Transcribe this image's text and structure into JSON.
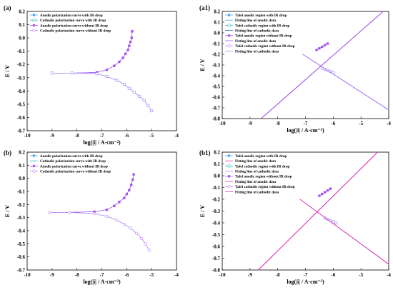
{
  "figure": {
    "panels": [
      {
        "label": "(a)"
      },
      {
        "label": "(a1)"
      },
      {
        "label": "(b)"
      },
      {
        "label": "(b1)"
      }
    ]
  },
  "colors": {
    "blue": "#4da6e8",
    "darkblue": "#1f5fd0",
    "cyan": "#3cc0c0",
    "purple": "#b050f0",
    "violet": "#c080ff",
    "pink": "#e03cb8",
    "lavender": "#b69bf0"
  },
  "chart_data": [
    {
      "type": "line",
      "panel": "(a)",
      "xlabel": "log(|i| / A·cm⁻²)",
      "ylabel": "E / V",
      "xlim": [
        -10,
        -4
      ],
      "ylim": [
        -0.7,
        0.2
      ],
      "xticks": [
        -10,
        -9,
        -8,
        -7,
        -6,
        -5,
        -4
      ],
      "yticks": [
        0.2,
        0.1,
        0.0,
        -0.1,
        -0.2,
        -0.3,
        -0.4,
        -0.5,
        -0.6,
        -0.7
      ],
      "legend_position": "top-left",
      "series": [
        {
          "name": "Anodic polarization curve with IR drop",
          "color": "blue",
          "marker": "filled-square",
          "x": [
            -9.0,
            -8.2,
            -7.2,
            -6.8,
            -6.5,
            -6.3,
            -6.15,
            -6.05,
            -5.95,
            -5.9,
            -5.85,
            -5.8,
            -5.78
          ],
          "y": [
            -0.265,
            -0.265,
            -0.26,
            -0.24,
            -0.21,
            -0.18,
            -0.15,
            -0.12,
            -0.09,
            -0.06,
            -0.03,
            0.0,
            0.05
          ]
        },
        {
          "name": "Cathodic polarization curve with IR drop",
          "color": "cyan",
          "marker": "open-square",
          "x": [
            -9.0,
            -8.2,
            -7.2,
            -6.8,
            -6.4,
            -6.1,
            -5.9,
            -5.7,
            -5.5,
            -5.3,
            -5.15,
            -5.0
          ],
          "y": [
            -0.265,
            -0.265,
            -0.27,
            -0.29,
            -0.32,
            -0.35,
            -0.38,
            -0.41,
            -0.44,
            -0.47,
            -0.51,
            -0.55
          ]
        },
        {
          "name": "Anodic polarization curve without IR drop",
          "color": "purple",
          "marker": "filled-circle",
          "x": [
            -9.0,
            -8.2,
            -7.2,
            -6.8,
            -6.5,
            -6.3,
            -6.15,
            -6.05,
            -5.95,
            -5.9,
            -5.85,
            -5.8,
            -5.78
          ],
          "y": [
            -0.265,
            -0.265,
            -0.26,
            -0.24,
            -0.21,
            -0.18,
            -0.15,
            -0.12,
            -0.09,
            -0.06,
            -0.03,
            0.0,
            0.05
          ]
        },
        {
          "name": "Cathodic polarization curve without IR drop",
          "color": "violet",
          "marker": "open-circle",
          "x": [
            -9.0,
            -8.2,
            -7.2,
            -6.8,
            -6.4,
            -6.1,
            -5.9,
            -5.7,
            -5.5,
            -5.3,
            -5.15,
            -5.0
          ],
          "y": [
            -0.265,
            -0.265,
            -0.27,
            -0.29,
            -0.32,
            -0.35,
            -0.38,
            -0.41,
            -0.44,
            -0.47,
            -0.51,
            -0.55
          ]
        }
      ]
    },
    {
      "type": "line",
      "panel": "(a1)",
      "xlabel": "log(|i| / A·cm⁻²)",
      "ylabel": "E / V",
      "xlim": [
        -10,
        -4
      ],
      "ylim": [
        -0.8,
        0.2
      ],
      "xticks": [
        -10,
        -9,
        -8,
        -7,
        -6,
        -5,
        -4
      ],
      "yticks": [
        0.2,
        0.1,
        0.0,
        -0.1,
        -0.2,
        -0.3,
        -0.4,
        -0.5,
        -0.6,
        -0.7,
        -0.8
      ],
      "legend_position": "top-left",
      "series": [
        {
          "name": "Tafel anodic region with IR drop",
          "color": "blue",
          "marker": "filled-square",
          "x": [
            -6.6,
            -6.5,
            -6.4,
            -6.3,
            -6.2
          ],
          "y": [
            -0.16,
            -0.145,
            -0.13,
            -0.115,
            -0.1
          ]
        },
        {
          "name": "Fitting line of anodic data",
          "color": "blue",
          "marker": "line",
          "x": [
            -8.6,
            -4.2
          ],
          "y": [
            -0.8,
            0.2
          ]
        },
        {
          "name": "Tafel cathodic region with IR drop",
          "color": "cyan",
          "marker": "open-square",
          "x": [
            -6.4,
            -6.3,
            -6.2,
            -6.1,
            -6.0
          ],
          "y": [
            -0.33,
            -0.34,
            -0.35,
            -0.36,
            -0.37
          ]
        },
        {
          "name": "Fitting line of cathodic data",
          "color": "darkblue",
          "marker": "line",
          "x": [
            -7.1,
            -4.0
          ],
          "y": [
            -0.2,
            -0.72
          ]
        },
        {
          "name": "Tafel anodic region without IR drop",
          "color": "purple",
          "marker": "filled-circle",
          "x": [
            -6.6,
            -6.5,
            -6.4,
            -6.3,
            -6.2
          ],
          "y": [
            -0.16,
            -0.145,
            -0.13,
            -0.115,
            -0.1
          ]
        },
        {
          "name": "Fitting line of anodic data",
          "color": "purple",
          "marker": "line",
          "x": [
            -8.6,
            -4.2
          ],
          "y": [
            -0.8,
            0.2
          ]
        },
        {
          "name": "Tafel cathodic region without IR drop",
          "color": "violet",
          "marker": "open-circle",
          "x": [
            -6.4,
            -6.3,
            -6.2,
            -6.1,
            -6.0
          ],
          "y": [
            -0.33,
            -0.34,
            -0.35,
            -0.36,
            -0.37
          ]
        },
        {
          "name": "Fitting line of cathodic data",
          "color": "violet",
          "marker": "line",
          "x": [
            -7.1,
            -4.0
          ],
          "y": [
            -0.2,
            -0.72
          ]
        }
      ]
    },
    {
      "type": "line",
      "panel": "(b)",
      "xlabel": "log(|i| / A·cm⁻²)",
      "ylabel": "E / V",
      "xlim": [
        -10,
        -4
      ],
      "ylim": [
        -0.7,
        0.2
      ],
      "xticks": [
        -10,
        -9,
        -8,
        -7,
        -6,
        -5,
        -4
      ],
      "yticks": [
        0.2,
        0.1,
        0.0,
        -0.1,
        -0.2,
        -0.3,
        -0.4,
        -0.5,
        -0.6,
        -0.7
      ],
      "legend_position": "top-left",
      "series": [
        {
          "name": "Anodic polarization curve with IR drop",
          "color": "blue",
          "marker": "filled-square",
          "x": [
            -9.1,
            -8.3,
            -7.3,
            -6.8,
            -6.5,
            -6.3,
            -6.1,
            -6.0,
            -5.9,
            -5.82,
            -5.76,
            -5.72
          ],
          "y": [
            -0.26,
            -0.26,
            -0.255,
            -0.24,
            -0.21,
            -0.18,
            -0.15,
            -0.12,
            -0.09,
            -0.05,
            -0.01,
            0.03
          ]
        },
        {
          "name": "Cathodic polarization curve with IR drop",
          "color": "cyan",
          "marker": "dash",
          "x": [
            -9.1,
            -8.3,
            -7.3,
            -6.8,
            -6.4,
            -6.1,
            -5.85,
            -5.6,
            -5.4,
            -5.25,
            -5.1
          ],
          "y": [
            -0.26,
            -0.26,
            -0.27,
            -0.29,
            -0.32,
            -0.35,
            -0.38,
            -0.42,
            -0.46,
            -0.5,
            -0.55
          ]
        },
        {
          "name": "Anodic polarization curve without IR drop",
          "color": "purple",
          "marker": "filled-circle",
          "x": [
            -9.1,
            -8.3,
            -7.3,
            -6.8,
            -6.5,
            -6.3,
            -6.1,
            -6.0,
            -5.9,
            -5.82,
            -5.76,
            -5.72
          ],
          "y": [
            -0.26,
            -0.26,
            -0.255,
            -0.24,
            -0.21,
            -0.18,
            -0.15,
            -0.12,
            -0.09,
            -0.05,
            -0.01,
            0.03
          ]
        },
        {
          "name": "Cathodic polarization curve without IR drop",
          "color": "violet",
          "marker": "open-circle",
          "x": [
            -9.1,
            -8.3,
            -7.3,
            -6.8,
            -6.4,
            -6.1,
            -5.85,
            -5.6,
            -5.4,
            -5.25,
            -5.1
          ],
          "y": [
            -0.26,
            -0.26,
            -0.27,
            -0.29,
            -0.32,
            -0.35,
            -0.38,
            -0.42,
            -0.46,
            -0.5,
            -0.55
          ]
        }
      ]
    },
    {
      "type": "line",
      "panel": "(b1)",
      "xlabel": "log(|i| / A·cm⁻²)",
      "ylabel": "E / V",
      "xlim": [
        -10,
        -4
      ],
      "ylim": [
        -0.8,
        0.2
      ],
      "xticks": [
        -10,
        -9,
        -8,
        -7,
        -6,
        -5,
        -4
      ],
      "yticks": [
        0.2,
        0.1,
        0.0,
        -0.1,
        -0.2,
        -0.3,
        -0.4,
        -0.5,
        -0.6,
        -0.7,
        -0.8
      ],
      "legend_position": "top-left",
      "series": [
        {
          "name": "Tafel anodic region with IR drop",
          "color": "blue",
          "marker": "filled-square",
          "x": [
            -6.5,
            -6.4,
            -6.3,
            -6.2,
            -6.1
          ],
          "y": [
            -0.17,
            -0.155,
            -0.14,
            -0.125,
            -0.11
          ]
        },
        {
          "name": "Fitting line of anodic data",
          "color": "pink",
          "marker": "line",
          "x": [
            -8.7,
            -4.4
          ],
          "y": [
            -0.8,
            0.2
          ]
        },
        {
          "name": "Tafel cathodic region with IR drop",
          "color": "cyan",
          "marker": "open-square",
          "x": [
            -6.3,
            -6.2,
            -6.1,
            -6.0,
            -5.9
          ],
          "y": [
            -0.36,
            -0.37,
            -0.38,
            -0.39,
            -0.4
          ]
        },
        {
          "name": "Fitting line of cathodic data",
          "color": "lavender",
          "marker": "line",
          "x": [
            -7.2,
            -4.0
          ],
          "y": [
            -0.2,
            -0.75
          ]
        },
        {
          "name": "Tafel anodic region without IR drop",
          "color": "purple",
          "marker": "filled-circle",
          "x": [
            -6.5,
            -6.4,
            -6.3,
            -6.2,
            -6.1
          ],
          "y": [
            -0.17,
            -0.155,
            -0.14,
            -0.125,
            -0.11
          ]
        },
        {
          "name": "Fitting line of anodic data",
          "color": "pink",
          "marker": "line",
          "x": [
            -8.7,
            -4.4
          ],
          "y": [
            -0.8,
            0.2
          ]
        },
        {
          "name": "Tafel cathodic region without IR drop",
          "color": "violet",
          "marker": "open-circle",
          "x": [
            -6.3,
            -6.2,
            -6.1,
            -6.0,
            -5.9
          ],
          "y": [
            -0.36,
            -0.37,
            -0.38,
            -0.39,
            -0.4
          ]
        },
        {
          "name": "Fitting line of cathodic data",
          "color": "pink",
          "marker": "line",
          "x": [
            -7.2,
            -4.0
          ],
          "y": [
            -0.2,
            -0.75
          ]
        }
      ]
    }
  ]
}
